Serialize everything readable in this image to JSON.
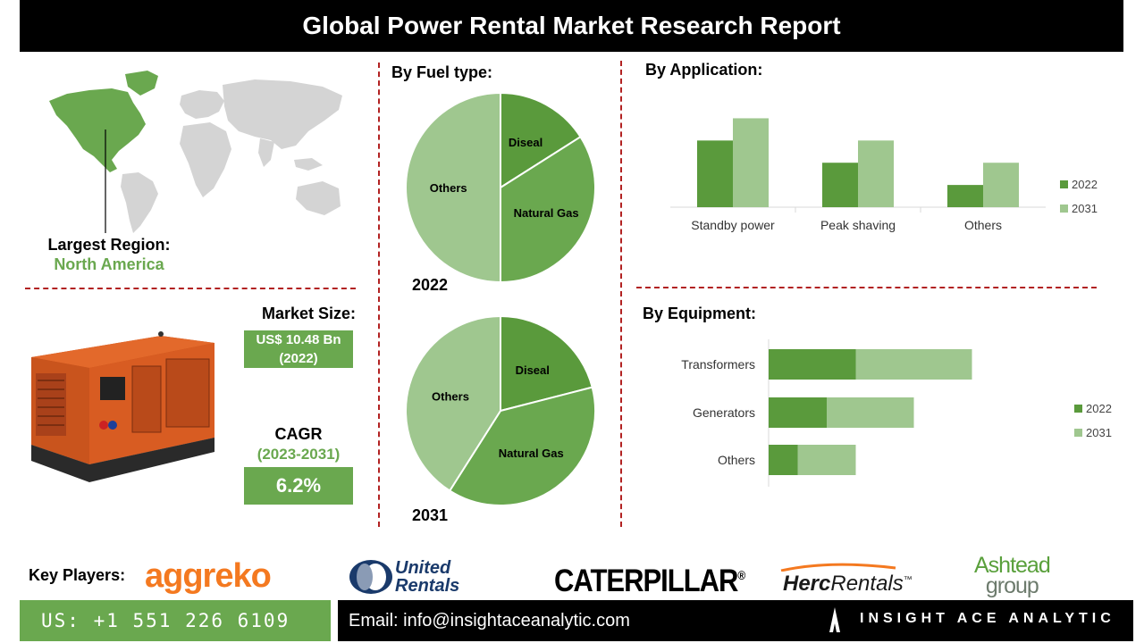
{
  "header": {
    "title": "Global Power Rental Market Research Report"
  },
  "region": {
    "label": "Largest Region:",
    "value": "North America"
  },
  "market": {
    "size_label": "Market Size:",
    "size_value": "US$ 10.48 Bn",
    "size_year": "(2022)",
    "cagr_label": "CAGR",
    "cagr_period": "(2023-2031)",
    "cagr_value": "6.2%"
  },
  "colors": {
    "green_dark": "#5a9a3c",
    "green_mid": "#6aa84f",
    "green_light": "#9fc78f",
    "accent_red": "#b22222"
  },
  "chart_data": [
    {
      "type": "pie",
      "title": "By Fuel type:",
      "caption": "2022",
      "labels": [
        "Diseal",
        "Natural Gas",
        "Others"
      ],
      "values": [
        16,
        34,
        50
      ]
    },
    {
      "type": "pie",
      "caption": "2031",
      "labels": [
        "Diseal",
        "Natural Gas",
        "Others"
      ],
      "values": [
        21,
        38,
        41
      ]
    },
    {
      "type": "bar",
      "title": "By  Application:",
      "categories": [
        "Standby power",
        "Peak shaving",
        "Others"
      ],
      "series": [
        {
          "name": "2022",
          "values": [
            3,
            2,
            1
          ]
        },
        {
          "name": "2031",
          "values": [
            4,
            3,
            2
          ]
        }
      ],
      "ylim": [
        0,
        4.5
      ],
      "legend": "right"
    },
    {
      "type": "bar",
      "orientation": "horizontal",
      "stacked": true,
      "title": "By Equipment:",
      "categories": [
        "Transformers",
        "Generators",
        "Others"
      ],
      "series": [
        {
          "name": "2022",
          "values": [
            3,
            2,
            1
          ]
        },
        {
          "name": "2031",
          "values": [
            4,
            3,
            2
          ]
        }
      ],
      "xlim": [
        0,
        7
      ],
      "legend": "right"
    }
  ],
  "players": {
    "label": "Key Players:",
    "logos": [
      {
        "name": "aggreko",
        "text": "aggreko",
        "color": "#f47920"
      },
      {
        "name": "united-rentals",
        "line1": "United",
        "line2": "Rentals",
        "color": "#1a3a6b"
      },
      {
        "name": "caterpillar",
        "text": "CATERPILLAR",
        "mark": "®",
        "color": "#000000"
      },
      {
        "name": "herc",
        "text1": "Herc",
        "text2": "Rentals",
        "mark": "™",
        "color": "#1a1a1a"
      },
      {
        "name": "ashtead",
        "line1": "Ashtead",
        "line2": "group",
        "color": "#5aa03c"
      }
    ]
  },
  "footer": {
    "phone": "US: +1 551 226 6109",
    "email": "Email: info@insightaceanalytic.com",
    "brand": "INSIGHT ACE ANALYTIC"
  }
}
